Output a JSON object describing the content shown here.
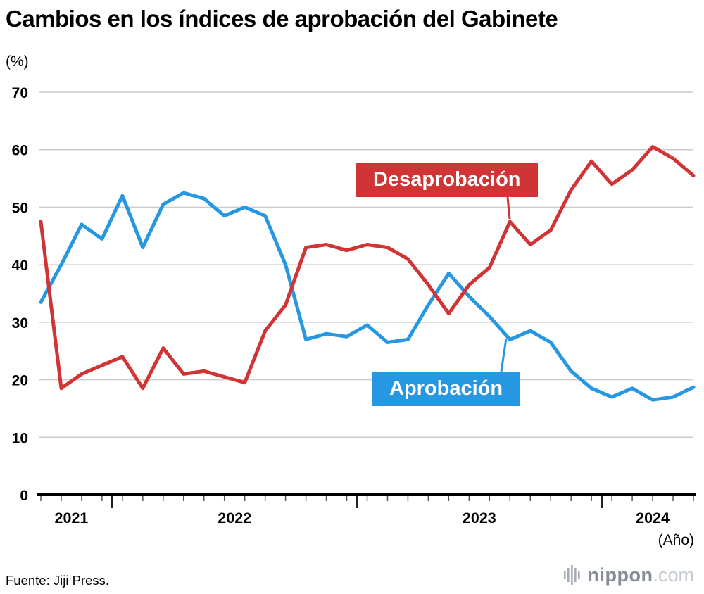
{
  "source": "Fuente: Jiji Press.",
  "branding": {
    "name": "nippon",
    "tld": ".com"
  },
  "colors": {
    "approval": "#2697e2",
    "disapproval": "#d13434",
    "grid": "#cccccc",
    "axis": "#000000",
    "tick": "#555555",
    "logo_bars": "#a7adb4"
  },
  "chart_data": {
    "type": "line",
    "title": "Cambios en los índices de aprobación del Gabinete",
    "ylabel": "(%)",
    "xlabel": "(Año)",
    "ylim": [
      0,
      70
    ],
    "yticks": [
      0,
      10,
      20,
      30,
      40,
      50,
      60,
      70
    ],
    "grid": true,
    "x": [
      "2021-09",
      "2021-10",
      "2021-11",
      "2021-12",
      "2022-01",
      "2022-02",
      "2022-03",
      "2022-04",
      "2022-05",
      "2022-06",
      "2022-07",
      "2022-08",
      "2022-09",
      "2022-10",
      "2022-11",
      "2022-12",
      "2023-01",
      "2023-02",
      "2023-03",
      "2023-04",
      "2023-05",
      "2023-06",
      "2023-07",
      "2023-08",
      "2023-09",
      "2023-10",
      "2023-11",
      "2023-12",
      "2024-01",
      "2024-02",
      "2024-03",
      "2024-04",
      "2024-05"
    ],
    "year_labels": [
      "2021",
      "2022",
      "2023",
      "2024"
    ],
    "series": [
      {
        "name": "Aprobación",
        "color": "#2697e2",
        "values": [
          33.5,
          40,
          47,
          44.5,
          52,
          43,
          50.5,
          52.5,
          51.5,
          48.5,
          50,
          48.5,
          40,
          27,
          28,
          27.5,
          29.5,
          26.5,
          27,
          33,
          38.5,
          34.5,
          31,
          27,
          28.5,
          26.5,
          21.5,
          18.5,
          17,
          18.5,
          16.5,
          17,
          18.7
        ]
      },
      {
        "name": "Desaprobación",
        "color": "#d13434",
        "values": [
          47.5,
          18.5,
          21,
          22.5,
          24,
          18.5,
          25.5,
          21,
          21.5,
          20.5,
          19.5,
          28.5,
          33,
          43,
          43.5,
          42.5,
          43.5,
          43,
          41,
          36.5,
          31.5,
          36.5,
          39.5,
          47.5,
          43.5,
          46,
          53,
          58,
          54,
          56.5,
          60.5,
          58.5,
          55.5
        ]
      }
    ]
  }
}
